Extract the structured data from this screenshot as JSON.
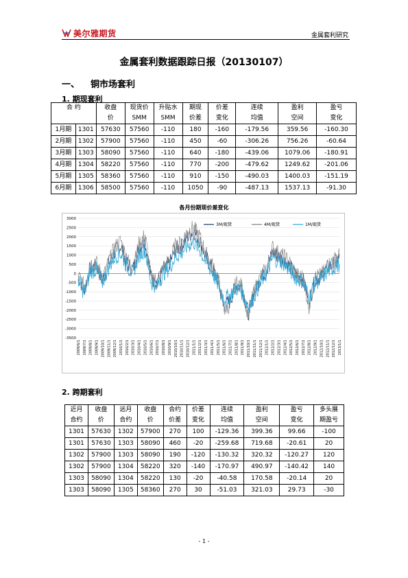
{
  "header": {
    "logo_text": "美尔雅期货",
    "right_text": "金属套利研究"
  },
  "title": "金属套利数据跟踪日报（20130107）",
  "section1": {
    "num": "一、",
    "label": "铜市场套利"
  },
  "sub1": "1.  期现套利",
  "table1": {
    "headers": [
      [
        "合  约",
        ""
      ],
      [
        "收盘",
        "价"
      ],
      [
        "现货价",
        "SMM"
      ],
      [
        "升贴水",
        "SMM"
      ],
      [
        "期现",
        "价差"
      ],
      [
        "价差",
        "变化"
      ],
      [
        "连续",
        "均值"
      ],
      [
        "盈利",
        "空间"
      ],
      [
        "盈亏",
        "变化"
      ]
    ],
    "rows": [
      [
        "1月期",
        "1301",
        "57630",
        "57560",
        "-110",
        "180",
        "-160",
        "-179.56",
        "359.56",
        "-160.30"
      ],
      [
        "2月期",
        "1302",
        "57900",
        "57560",
        "-110",
        "450",
        "-60",
        "-306.26",
        "756.26",
        "-60.64"
      ],
      [
        "3月期",
        "1303",
        "58090",
        "57560",
        "-110",
        "640",
        "-180",
        "-439.06",
        "1079.06",
        "-180.91"
      ],
      [
        "4月期",
        "1304",
        "58220",
        "57560",
        "-110",
        "770",
        "-200",
        "-479.62",
        "1249.62",
        "-201.06"
      ],
      [
        "5月期",
        "1305",
        "58360",
        "57560",
        "-110",
        "910",
        "-150",
        "-490.03",
        "1400.03",
        "-151.19"
      ],
      [
        "6月期",
        "1306",
        "58500",
        "57560",
        "-110",
        "1050",
        "-90",
        "-487.13",
        "1537.13",
        "-91.30"
      ]
    ]
  },
  "chart_data": {
    "type": "line",
    "title": "各月份期现价差变化",
    "ylim": [
      -3500,
      3000
    ],
    "yticks": [
      "3000",
      "2500",
      "2000",
      "1500",
      "1000",
      "500",
      "0",
      "-500",
      "-1000",
      "-1500",
      "-2000",
      "-2500",
      "-3000",
      "-3500"
    ],
    "x": [
      "2009/6/1",
      "2009/7/1",
      "2009/8/1",
      "2009/9/1",
      "2009/10/1",
      "2009/11/1",
      "2009/12/1",
      "2010/1/1",
      "2010/2/1",
      "2010/3/1",
      "2010/4/1",
      "2010/5/1",
      "2010/6/1",
      "2010/7/1",
      "2010/8/1",
      "2010/9/1",
      "2010/10/1",
      "2010/11/1",
      "2010/12/1",
      "2011/1/1",
      "2011/2/1",
      "2011/3/1",
      "2011/4/1",
      "2011/5/1",
      "2011/6/1",
      "2011/7/1",
      "2011/8/1",
      "2011/9/1",
      "2011/10/1",
      "2011/11/1",
      "2011/12/1",
      "2012/1/1",
      "2012/2/1",
      "2012/3/1",
      "2012/4/1",
      "2012/5/1",
      "2012/6/1",
      "2012/7/1",
      "2012/8/1",
      "2012/9/1",
      "2012/10/1",
      "2012/11/1",
      "2012/12/1",
      "2013/1/1"
    ],
    "grid": true,
    "legend_position": "top",
    "series": [
      {
        "name": "3M/现货",
        "color": "#1f3864",
        "values": [
          -200,
          -900,
          300,
          400,
          -400,
          500,
          1200,
          1500,
          600,
          200,
          1400,
          1800,
          -300,
          -500,
          200,
          500,
          1300,
          1500,
          2000,
          2300,
          1800,
          900,
          300,
          -400,
          -1800,
          -1500,
          -600,
          -800,
          -2200,
          -1000,
          -300,
          200,
          1200,
          900,
          700,
          300,
          -200,
          -300,
          -1600,
          -300,
          -200,
          300,
          500,
          800
        ]
      },
      {
        "name": "4M/现货",
        "color": "#7f7f7f",
        "values": [
          -100,
          -700,
          400,
          600,
          -300,
          600,
          1400,
          1800,
          800,
          300,
          1600,
          2100,
          -200,
          -400,
          300,
          700,
          1500,
          1700,
          2300,
          2500,
          2000,
          1100,
          500,
          -200,
          -2000,
          -1700,
          -500,
          -700,
          -2400,
          -900,
          -200,
          300,
          1400,
          1100,
          900,
          500,
          -100,
          -200,
          -1800,
          -200,
          -100,
          400,
          700,
          1000
        ]
      },
      {
        "name": "1M/现货",
        "color": "#2fa8d8",
        "values": [
          -300,
          -1100,
          100,
          200,
          -500,
          300,
          900,
          1100,
          400,
          0,
          1000,
          1300,
          -500,
          -700,
          0,
          300,
          900,
          1100,
          1500,
          1700,
          1300,
          600,
          100,
          -600,
          -1400,
          -1200,
          -800,
          -1000,
          -1900,
          -1200,
          -500,
          0,
          800,
          700,
          500,
          100,
          -300,
          -400,
          -1300,
          -500,
          -300,
          100,
          300,
          500
        ]
      }
    ]
  },
  "sub2": "2.  跨期套利",
  "table2": {
    "headers": [
      [
        "近月",
        "合约"
      ],
      [
        "收盘",
        "价"
      ],
      [
        "远月",
        "合约"
      ],
      [
        "收盘",
        "价"
      ],
      [
        "合约",
        "价差"
      ],
      [
        "价差",
        "变化"
      ],
      [
        "连续",
        "均值"
      ],
      [
        "盈利",
        "空间"
      ],
      [
        "盈亏",
        "变化"
      ],
      [
        "多头展",
        "期盈亏"
      ]
    ],
    "rows": [
      [
        "1301",
        "57630",
        "1302",
        "57900",
        "270",
        "100",
        "-129.36",
        "399.36",
        "99.66",
        "-100"
      ],
      [
        "1301",
        "57630",
        "1303",
        "58090",
        "460",
        "-20",
        "-259.68",
        "719.68",
        "-20.61",
        "20"
      ],
      [
        "1302",
        "57900",
        "1303",
        "58090",
        "190",
        "-120",
        "-130.32",
        "320.32",
        "-120.27",
        "120"
      ],
      [
        "1302",
        "57900",
        "1304",
        "58220",
        "320",
        "-140",
        "-170.97",
        "490.97",
        "-140.42",
        "140"
      ],
      [
        "1303",
        "58090",
        "1304",
        "58220",
        "130",
        "-20",
        "-40.58",
        "170.58",
        "-20.14",
        "20"
      ],
      [
        "1303",
        "58090",
        "1305",
        "58360",
        "270",
        "30",
        "-51.03",
        "321.03",
        "29.73",
        "-30"
      ]
    ]
  },
  "footer": "- 1 -"
}
